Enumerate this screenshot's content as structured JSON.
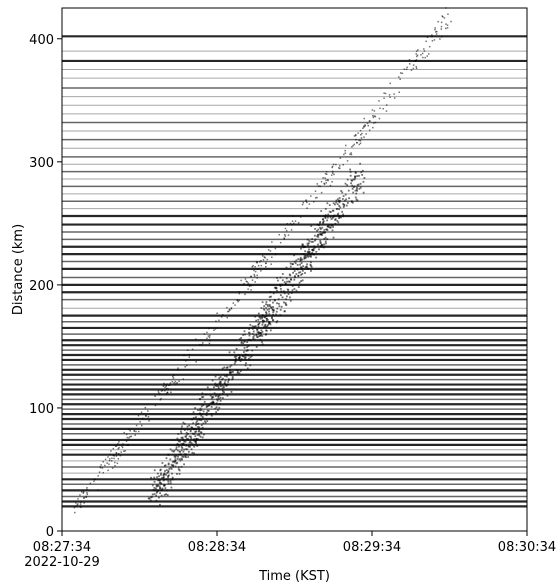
{
  "chart_data": {
    "type": "scatter",
    "title": "",
    "xlabel": "Time (KST)",
    "ylabel": "Distance (km)",
    "xlim": [
      "08:27:34",
      "08:30:34"
    ],
    "ylim": [
      0,
      425
    ],
    "x_ticks": [
      {
        "value": "08:27:34",
        "label": "08:27:34",
        "sublabel": "2022-10-29"
      },
      {
        "value": "08:28:34",
        "label": "08:28:34"
      },
      {
        "value": "08:29:34",
        "label": "08:29:34"
      },
      {
        "value": "08:30:34",
        "label": "08:30:34"
      }
    ],
    "y_ticks": [
      0,
      100,
      200,
      300,
      400
    ],
    "grid": false,
    "legend": "none",
    "trace_color": "#000000",
    "station_traces": [
      {
        "distance_km": 20,
        "weight": "heavy"
      },
      {
        "distance_km": 24,
        "weight": "heavy"
      },
      {
        "distance_km": 28,
        "weight": "medium"
      },
      {
        "distance_km": 33,
        "weight": "heavy"
      },
      {
        "distance_km": 38,
        "weight": "medium"
      },
      {
        "distance_km": 42,
        "weight": "heavy"
      },
      {
        "distance_km": 47,
        "weight": "light"
      },
      {
        "distance_km": 52,
        "weight": "medium"
      },
      {
        "distance_km": 57,
        "weight": "light"
      },
      {
        "distance_km": 62,
        "weight": "heavy"
      },
      {
        "distance_km": 66,
        "weight": "light"
      },
      {
        "distance_km": 70,
        "weight": "heavy"
      },
      {
        "distance_km": 74,
        "weight": "heavy"
      },
      {
        "distance_km": 79,
        "weight": "medium"
      },
      {
        "distance_km": 83,
        "weight": "heavy"
      },
      {
        "distance_km": 87,
        "weight": "medium"
      },
      {
        "distance_km": 91,
        "weight": "heavy"
      },
      {
        "distance_km": 95,
        "weight": "heavy"
      },
      {
        "distance_km": 99,
        "weight": "medium"
      },
      {
        "distance_km": 103,
        "weight": "heavy"
      },
      {
        "distance_km": 107,
        "weight": "medium"
      },
      {
        "distance_km": 111,
        "weight": "heavy"
      },
      {
        "distance_km": 115,
        "weight": "heavy"
      },
      {
        "distance_km": 119,
        "weight": "heavy"
      },
      {
        "distance_km": 123,
        "weight": "medium"
      },
      {
        "distance_km": 127,
        "weight": "heavy"
      },
      {
        "distance_km": 131,
        "weight": "heavy"
      },
      {
        "distance_km": 135,
        "weight": "medium"
      },
      {
        "distance_km": 139,
        "weight": "heavy"
      },
      {
        "distance_km": 143,
        "weight": "heavy"
      },
      {
        "distance_km": 147,
        "weight": "medium"
      },
      {
        "distance_km": 151,
        "weight": "heavy"
      },
      {
        "distance_km": 155,
        "weight": "heavy"
      },
      {
        "distance_km": 160,
        "weight": "medium"
      },
      {
        "distance_km": 165,
        "weight": "heavy"
      },
      {
        "distance_km": 170,
        "weight": "medium"
      },
      {
        "distance_km": 175,
        "weight": "heavy"
      },
      {
        "distance_km": 181,
        "weight": "light"
      },
      {
        "distance_km": 188,
        "weight": "medium"
      },
      {
        "distance_km": 194,
        "weight": "heavy"
      },
      {
        "distance_km": 200,
        "weight": "heavy"
      },
      {
        "distance_km": 206,
        "weight": "medium"
      },
      {
        "distance_km": 213,
        "weight": "heavy"
      },
      {
        "distance_km": 219,
        "weight": "medium"
      },
      {
        "distance_km": 225,
        "weight": "heavy"
      },
      {
        "distance_km": 231,
        "weight": "heavy"
      },
      {
        "distance_km": 237,
        "weight": "medium"
      },
      {
        "distance_km": 243,
        "weight": "medium"
      },
      {
        "distance_km": 249,
        "weight": "heavy"
      },
      {
        "distance_km": 256,
        "weight": "heavy"
      },
      {
        "distance_km": 262,
        "weight": "light"
      },
      {
        "distance_km": 268,
        "weight": "medium"
      },
      {
        "distance_km": 274,
        "weight": "light"
      },
      {
        "distance_km": 280,
        "weight": "medium"
      },
      {
        "distance_km": 286,
        "weight": "light"
      },
      {
        "distance_km": 292,
        "weight": "medium"
      },
      {
        "distance_km": 298,
        "weight": "light"
      },
      {
        "distance_km": 304,
        "weight": "medium"
      },
      {
        "distance_km": 311,
        "weight": "light"
      },
      {
        "distance_km": 318,
        "weight": "medium"
      },
      {
        "distance_km": 325,
        "weight": "light"
      },
      {
        "distance_km": 332,
        "weight": "medium"
      },
      {
        "distance_km": 339,
        "weight": "light"
      },
      {
        "distance_km": 346,
        "weight": "light"
      },
      {
        "distance_km": 353,
        "weight": "light"
      },
      {
        "distance_km": 360,
        "weight": "medium"
      },
      {
        "distance_km": 368,
        "weight": "light"
      },
      {
        "distance_km": 375,
        "weight": "light"
      },
      {
        "distance_km": 382,
        "weight": "heavy"
      },
      {
        "distance_km": 390,
        "weight": "light"
      },
      {
        "distance_km": 402,
        "weight": "heavy"
      }
    ],
    "p_wave_arrival": [
      {
        "time_s": 5,
        "distance_km": 20
      },
      {
        "time_s": 60,
        "distance_km": 170
      },
      {
        "time_s": 120,
        "distance_km": 335
      },
      {
        "time_s": 150,
        "distance_km": 420
      }
    ],
    "s_wave_arrival": [
      {
        "time_s": 35,
        "distance_km": 30
      },
      {
        "time_s": 65,
        "distance_km": 130
      },
      {
        "time_s": 90,
        "distance_km": 210
      },
      {
        "time_s": 115,
        "distance_km": 290
      }
    ]
  }
}
